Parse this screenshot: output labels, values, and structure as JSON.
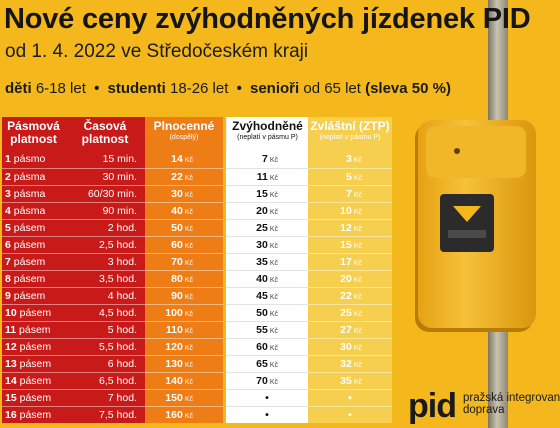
{
  "title": "Nové ceny zvýhodněných jízdenek PID",
  "subtitle": "od 1. 4. 2022 ve Středočeském kraji",
  "groups": {
    "children_label": "děti",
    "children_range": "6-18 let",
    "students_label": "studenti",
    "students_range": "18-26 let",
    "seniors_label": "senioři",
    "seniors_range": "od 65 let",
    "discount": "(sleva 50 %)",
    "bullet": "•"
  },
  "headers": {
    "zones": "Pásmová platnost",
    "time": "Časová platnost",
    "full": "Plnocenné",
    "full_note": "(dospělý)",
    "reduced": "Zvýhodněné",
    "reduced_note": "(neplatí v pásmu P)",
    "special": "Zvláštní (ZTP)",
    "special_note": "(neplatí v pásmu P)"
  },
  "currency": "Kč",
  "rows": [
    {
      "zones_num": "1",
      "zones_word": "pásmo",
      "time": "15 min.",
      "full": "14",
      "reduced": "7",
      "special": "3"
    },
    {
      "zones_num": "2",
      "zones_word": "pásma",
      "time": "30 min.",
      "full": "22",
      "reduced": "11",
      "special": "5"
    },
    {
      "zones_num": "3",
      "zones_word": "pásma",
      "time": "60/30 min.",
      "full": "30",
      "reduced": "15",
      "special": "7"
    },
    {
      "zones_num": "4",
      "zones_word": "pásma",
      "time": "90 min.",
      "full": "40",
      "reduced": "20",
      "special": "10"
    },
    {
      "zones_num": "5",
      "zones_word": "pásem",
      "time": "2 hod.",
      "full": "50",
      "reduced": "25",
      "special": "12"
    },
    {
      "zones_num": "6",
      "zones_word": "pásem",
      "time": "2,5 hod.",
      "full": "60",
      "reduced": "30",
      "special": "15"
    },
    {
      "zones_num": "7",
      "zones_word": "pásem",
      "time": "3 hod.",
      "full": "70",
      "reduced": "35",
      "special": "17"
    },
    {
      "zones_num": "8",
      "zones_word": "pásem",
      "time": "3,5 hod.",
      "full": "80",
      "reduced": "40",
      "special": "20"
    },
    {
      "zones_num": "9",
      "zones_word": "pásem",
      "time": "4 hod.",
      "full": "90",
      "reduced": "45",
      "special": "22"
    },
    {
      "zones_num": "10",
      "zones_word": "pásem",
      "time": "4,5 hod.",
      "full": "100",
      "reduced": "50",
      "special": "25"
    },
    {
      "zones_num": "11",
      "zones_word": "pásem",
      "time": "5 hod.",
      "full": "110",
      "reduced": "55",
      "special": "27"
    },
    {
      "zones_num": "12",
      "zones_word": "pásem",
      "time": "5,5 hod.",
      "full": "120",
      "reduced": "60",
      "special": "30"
    },
    {
      "zones_num": "13",
      "zones_word": "pásem",
      "time": "6 hod.",
      "full": "130",
      "reduced": "65",
      "special": "32"
    },
    {
      "zones_num": "14",
      "zones_word": "pásem",
      "time": "6,5 hod.",
      "full": "140",
      "reduced": "70",
      "special": "35"
    },
    {
      "zones_num": "15",
      "zones_word": "pásem",
      "time": "7 hod.",
      "full": "150",
      "reduced": "•",
      "special": "•"
    },
    {
      "zones_num": "16",
      "zones_word": "pásem",
      "time": "7,5 hod.",
      "full": "160",
      "reduced": "•",
      "special": "•"
    }
  ],
  "logo": {
    "mark": "pid",
    "line1": "pražská integrovaná",
    "line2": "doprava"
  },
  "colors": {
    "background": "#f4b81c",
    "zones_column": "#c91a1a",
    "full_column": "#ee7d15",
    "reduced_column": "#ffffff",
    "special_column": "#f6cf4e"
  }
}
